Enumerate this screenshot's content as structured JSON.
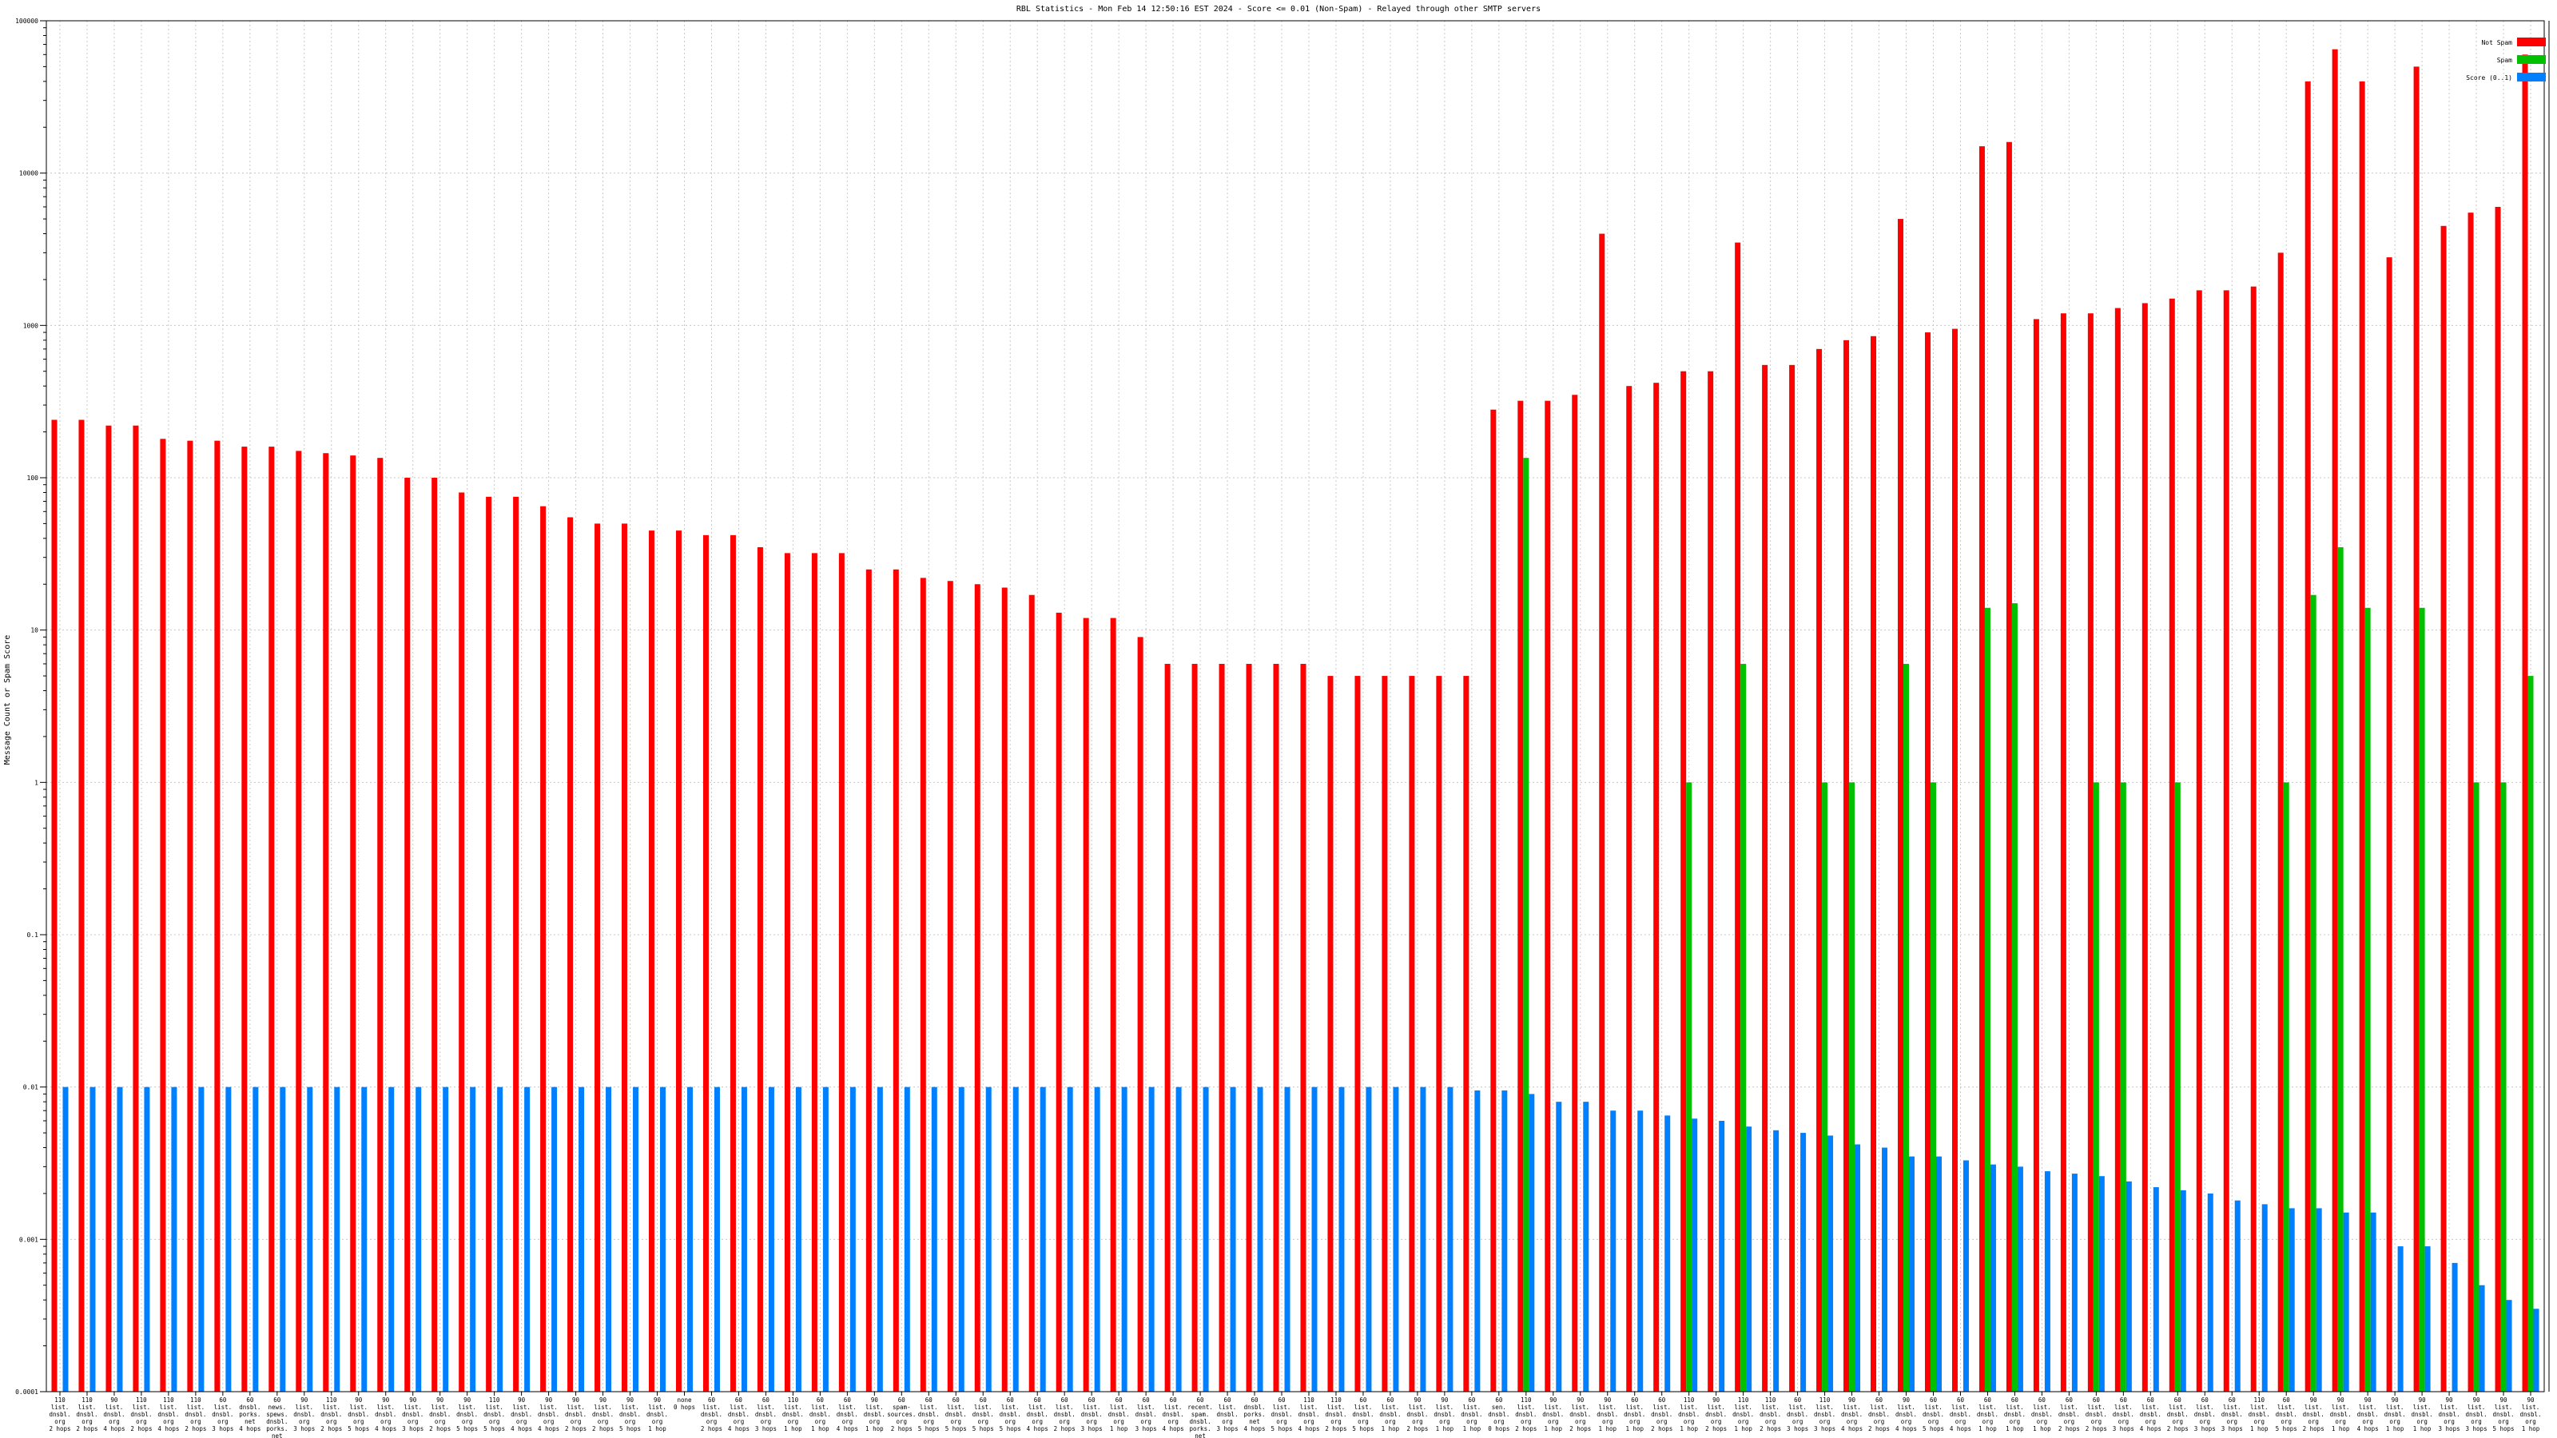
{
  "chart_data": {
    "type": "bar",
    "title": "RBL Statistics - Mon Feb 14 12:50:16 EST 2024 - Score <= 0.01 (Non-Spam) - Relayed through other SMTP servers",
    "ylabel": "Message Count or Spam Score",
    "xlabel": "",
    "yscale": "log",
    "ylim": [
      0.0001,
      100000
    ],
    "yticks": [
      {
        "v": 0.0001,
        "label": "0.0001"
      },
      {
        "v": 0.001,
        "label": "0.001"
      },
      {
        "v": 0.01,
        "label": "0.01"
      },
      {
        "v": 0.1,
        "label": "0.1"
      },
      {
        "v": 1,
        "label": "1"
      },
      {
        "v": 10,
        "label": "10"
      },
      {
        "v": 100,
        "label": "100"
      },
      {
        "v": 1000,
        "label": "1000"
      },
      {
        "v": 10000,
        "label": "10000"
      },
      {
        "v": 100000,
        "label": "100000"
      }
    ],
    "grid": true,
    "legend_position": "top-right",
    "categories": [
      [
        "110",
        "list.",
        "dnsbl.",
        "org",
        "2 hops"
      ],
      [
        "110",
        "list.",
        "dnsbl.",
        "org",
        "2 hops"
      ],
      [
        "90",
        "list.",
        "dnsbl.",
        "org",
        "4 hops"
      ],
      [
        "110",
        "list.",
        "dnsbl.",
        "org",
        "2 hops"
      ],
      [
        "110",
        "list.",
        "dnsbl.",
        "org",
        "4 hops"
      ],
      [
        "110",
        "list.",
        "dnsbl.",
        "org",
        "2 hops"
      ],
      [
        "60",
        "list.",
        "dnsbl.",
        "org",
        "3 hops"
      ],
      [
        "60",
        "dnsbl.",
        "porks.",
        "net",
        "4 hops"
      ],
      [
        "60",
        "news.",
        "spews.",
        "dnsbl.",
        "porks.",
        "net",
        "4 hops"
      ],
      [
        "90",
        "list.",
        "dnsbl.",
        "org",
        "3 hops"
      ],
      [
        "110",
        "list.",
        "dnsbl.",
        "org",
        "2 hops"
      ],
      [
        "90",
        "list.",
        "dnsbl.",
        "org",
        "5 hops"
      ],
      [
        "90",
        "list.",
        "dnsbl.",
        "org",
        "4 hops"
      ],
      [
        "90",
        "list.",
        "dnsbl.",
        "org",
        "3 hops"
      ],
      [
        "90",
        "list.",
        "dnsbl.",
        "org",
        "2 hops"
      ],
      [
        "90",
        "list.",
        "dnsbl.",
        "org",
        "5 hops"
      ],
      [
        "110",
        "list.",
        "dnsbl.",
        "org",
        "5 hops"
      ],
      [
        "90",
        "list.",
        "dnsbl.",
        "org",
        "4 hops"
      ],
      [
        "90",
        "list.",
        "dnsbl.",
        "org",
        "4 hops"
      ],
      [
        "90",
        "list.",
        "dnsbl.",
        "org",
        "2 hops"
      ],
      [
        "90",
        "list.",
        "dnsbl.",
        "org",
        "2 hops"
      ],
      [
        "90",
        "list.",
        "dnsbl.",
        "org",
        "5 hops"
      ],
      [
        "90",
        "list.",
        "dnsbl.",
        "org",
        "1 hop"
      ],
      [
        "none",
        "0 hops"
      ],
      [
        "60",
        "list.",
        "dnsbl.",
        "org",
        "2 hops"
      ],
      [
        "60",
        "list.",
        "dnsbl.",
        "org",
        "4 hops"
      ],
      [
        "60",
        "list.",
        "dnsbl.",
        "org",
        "3 hops"
      ],
      [
        "110",
        "list.",
        "dnsbl.",
        "org",
        "1 hop"
      ],
      [
        "60",
        "list.",
        "dnsbl.",
        "org",
        "1 hop"
      ],
      [
        "60",
        "list.",
        "dnsbl.",
        "org",
        "4 hops"
      ],
      [
        "90",
        "list.",
        "dnsbl.",
        "org",
        "1 hop"
      ],
      [
        "60",
        "spam-",
        "sources.",
        "org",
        "2 hops"
      ],
      [
        "60",
        "list.",
        "dnsbl.",
        "org",
        "5 hops"
      ],
      [
        "60",
        "list.",
        "dnsbl.",
        "org",
        "5 hops"
      ],
      [
        "60",
        "list.",
        "dnsbl.",
        "org",
        "5 hops"
      ],
      [
        "60",
        "list.",
        "dnsbl.",
        "org",
        "5 hops"
      ],
      [
        "60",
        "list.",
        "dnsbl.",
        "org",
        "4 hops"
      ],
      [
        "60",
        "list.",
        "dnsbl.",
        "org",
        "2 hops"
      ],
      [
        "60",
        "list.",
        "dnsbl.",
        "org",
        "3 hops"
      ],
      [
        "60",
        "list.",
        "dnsbl.",
        "org",
        "1 hop"
      ],
      [
        "60",
        "list.",
        "dnsbl.",
        "org",
        "3 hops"
      ],
      [
        "60",
        "list.",
        "dnsbl.",
        "org",
        "4 hops"
      ],
      [
        "60",
        "recent.",
        "spam.",
        "dnsbl.",
        "porks.",
        "net",
        "4 hops"
      ],
      [
        "60",
        "list.",
        "dnsbl.",
        "org",
        "3 hops"
      ],
      [
        "60",
        "dnsbl.",
        "porks.",
        "net",
        "4 hops"
      ],
      [
        "60",
        "list.",
        "dnsbl.",
        "org",
        "5 hops"
      ],
      [
        "110",
        "list.",
        "dnsbl.",
        "org",
        "4 hops"
      ],
      [
        "110",
        "list.",
        "dnsbl.",
        "org",
        "2 hops"
      ],
      [
        "60",
        "list.",
        "dnsbl.",
        "org",
        "5 hops"
      ],
      [
        "60",
        "list.",
        "dnsbl.",
        "org",
        "1 hop"
      ],
      [
        "90",
        "list.",
        "dnsbl.",
        "org",
        "2 hops"
      ],
      [
        "90",
        "list.",
        "dnsbl.",
        "org",
        "1 hop"
      ],
      [
        "60",
        "list.",
        "dnsbl.",
        "org",
        "1 hop"
      ],
      [
        "60",
        "sen.",
        "dnsbl.",
        "org",
        "0 hops"
      ],
      [
        "110",
        "list.",
        "dnsbl.",
        "org",
        "2 hops"
      ],
      [
        "90",
        "list.",
        "dnsbl.",
        "org",
        "1 hop"
      ],
      [
        "90",
        "list.",
        "dnsbl.",
        "org",
        "2 hops"
      ],
      [
        "90",
        "list.",
        "dnsbl.",
        "org",
        "1 hop"
      ],
      [
        "60",
        "list.",
        "dnsbl.",
        "org",
        "1 hop"
      ],
      [
        "60",
        "list.",
        "dnsbl.",
        "org",
        "2 hops"
      ],
      [
        "110",
        "list.",
        "dnsbl.",
        "org",
        "1 hop"
      ],
      [
        "90",
        "list.",
        "dnsbl.",
        "org",
        "2 hops"
      ],
      [
        "110",
        "list.",
        "dnsbl.",
        "org",
        "1 hop"
      ],
      [
        "110",
        "list.",
        "dnsbl.",
        "org",
        "2 hops"
      ],
      [
        "60",
        "list.",
        "dnsbl.",
        "org",
        "3 hops"
      ],
      [
        "110",
        "list.",
        "dnsbl.",
        "org",
        "3 hops"
      ],
      [
        "90",
        "list.",
        "dnsbl.",
        "org",
        "4 hops"
      ],
      [
        "60",
        "list.",
        "dnsbl.",
        "org",
        "2 hops"
      ],
      [
        "90",
        "list.",
        "dnsbl.",
        "org",
        "4 hops"
      ],
      [
        "60",
        "list.",
        "dnsbl.",
        "org",
        "5 hops"
      ],
      [
        "60",
        "list.",
        "dnsbl.",
        "org",
        "4 hops"
      ],
      [
        "60",
        "list.",
        "dnsbl.",
        "org",
        "1 hop"
      ],
      [
        "60",
        "list.",
        "dnsbl.",
        "org",
        "1 hop"
      ],
      [
        "60",
        "list.",
        "dnsbl.",
        "org",
        "1 hop"
      ],
      [
        "60",
        "list.",
        "dnsbl.",
        "org",
        "2 hops"
      ],
      [
        "60",
        "list.",
        "dnsbl.",
        "org",
        "2 hops"
      ],
      [
        "60",
        "list.",
        "dnsbl.",
        "org",
        "3 hops"
      ],
      [
        "60",
        "list.",
        "dnsbl.",
        "org",
        "4 hops"
      ],
      [
        "60",
        "list.",
        "dnsbl.",
        "org",
        "2 hops"
      ],
      [
        "60",
        "list.",
        "dnsbl.",
        "org",
        "3 hops"
      ],
      [
        "60",
        "list.",
        "dnsbl.",
        "org",
        "3 hops"
      ],
      [
        "110",
        "list.",
        "dnsbl.",
        "org",
        "1 hop"
      ],
      [
        "60",
        "list.",
        "dnsbl.",
        "org",
        "5 hops"
      ],
      [
        "90",
        "list.",
        "dnsbl.",
        "org",
        "2 hops"
      ],
      [
        "90",
        "list.",
        "dnsbl.",
        "org",
        "1 hop"
      ],
      [
        "90",
        "list.",
        "dnsbl.",
        "org",
        "4 hops"
      ],
      [
        "90",
        "list.",
        "dnsbl.",
        "org",
        "1 hop"
      ],
      [
        "90",
        "list.",
        "dnsbl.",
        "org",
        "1 hop"
      ],
      [
        "90",
        "list.",
        "dnsbl.",
        "org",
        "3 hops"
      ],
      [
        "90",
        "list.",
        "dnsbl.",
        "org",
        "3 hops"
      ],
      [
        "90",
        "list.",
        "dnsbl.",
        "org",
        "5 hops"
      ],
      [
        "90",
        "list.",
        "dnsbl.",
        "org",
        "1 hop"
      ]
    ],
    "series": [
      {
        "name": "Not Spam",
        "color": "#ff0000",
        "values": [
          240,
          240,
          220,
          220,
          180,
          175,
          175,
          160,
          160,
          150,
          145,
          140,
          135,
          100,
          100,
          80,
          75,
          75,
          65,
          55,
          50,
          50,
          45,
          45,
          42,
          42,
          35,
          32,
          32,
          32,
          25,
          25,
          22,
          21,
          20,
          19,
          17,
          13,
          12,
          12,
          9,
          6,
          6,
          6,
          6,
          6,
          6,
          5,
          5,
          5,
          5,
          5,
          5,
          280,
          320,
          320,
          350,
          4000,
          400,
          420,
          500,
          500,
          3500,
          550,
          550,
          700,
          800,
          850,
          5000,
          900,
          950,
          15000,
          16000,
          1100,
          1200,
          1200,
          1300,
          1400,
          1500,
          1700,
          1700,
          1800,
          3000,
          40000,
          65000,
          40000,
          2800,
          50000,
          4500,
          5500,
          6000,
          60000
        ]
      },
      {
        "name": "Spam",
        "color": "#00c000",
        "values": [
          0,
          0,
          0,
          0,
          0,
          0,
          0,
          0,
          0,
          0,
          0,
          0,
          0,
          0,
          0,
          0,
          0,
          0,
          0,
          0,
          0,
          0,
          0,
          0,
          0,
          0,
          0,
          0,
          0,
          0,
          0,
          0,
          0,
          0,
          0,
          0,
          0,
          0,
          0,
          0,
          0,
          0,
          0,
          0,
          0,
          0,
          0,
          0,
          0,
          0,
          0,
          0,
          0,
          0,
          135,
          0,
          0,
          0,
          0,
          0,
          1,
          0,
          6,
          0,
          0,
          1,
          1,
          0,
          6,
          1,
          0,
          14,
          15,
          0,
          0,
          1,
          1,
          0,
          1,
          0,
          0,
          0,
          1,
          17,
          35,
          14,
          0,
          14,
          0,
          1,
          1,
          5
        ]
      },
      {
        "name": "Score (0..1)",
        "color": "#0080ff",
        "values": [
          0.01,
          0.01,
          0.01,
          0.01,
          0.01,
          0.01,
          0.01,
          0.01,
          0.01,
          0.01,
          0.01,
          0.01,
          0.01,
          0.01,
          0.01,
          0.01,
          0.01,
          0.01,
          0.01,
          0.01,
          0.01,
          0.01,
          0.01,
          0.01,
          0.01,
          0.01,
          0.01,
          0.01,
          0.01,
          0.01,
          0.01,
          0.01,
          0.01,
          0.01,
          0.01,
          0.01,
          0.01,
          0.01,
          0.01,
          0.01,
          0.01,
          0.01,
          0.01,
          0.01,
          0.01,
          0.01,
          0.01,
          0.01,
          0.01,
          0.01,
          0.01,
          0.01,
          0.0095,
          0.0095,
          0.009,
          0.008,
          0.008,
          0.007,
          0.007,
          0.0065,
          0.0062,
          0.006,
          0.0055,
          0.0052,
          0.005,
          0.0048,
          0.0042,
          0.004,
          0.0035,
          0.0035,
          0.0033,
          0.0031,
          0.003,
          0.0028,
          0.0027,
          0.0026,
          0.0024,
          0.0022,
          0.0021,
          0.002,
          0.0018,
          0.0017,
          0.0016,
          0.0016,
          0.0015,
          0.0015,
          0.0009,
          0.0009,
          0.0007,
          0.0005,
          0.0004,
          0.00035
        ]
      }
    ]
  }
}
